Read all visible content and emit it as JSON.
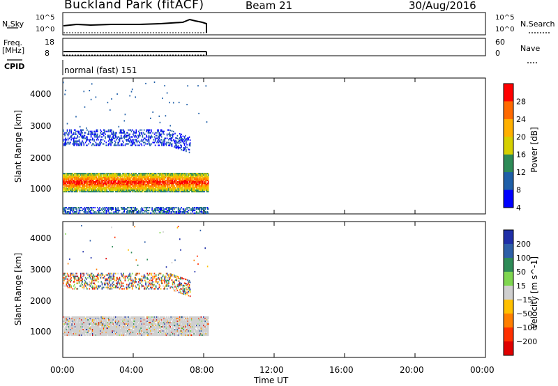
{
  "header": {
    "title": "Buckland Park (fitACF)",
    "beam": "Beam 21",
    "date": "30/Aug/2016"
  },
  "status_panels": {
    "nsky_label": "N.Sky",
    "nsky_ticks": [
      "10^5",
      "10^0"
    ],
    "nsearch_label": "N.Search",
    "freq_label": "Freq.",
    "freq_unit": "[MHz]",
    "freq_ticks": [
      "18",
      "8"
    ],
    "nave_ticks": [
      "60",
      "0"
    ],
    "nave_label": "Nave",
    "cpid_label": "CPID",
    "cpid_value": "normal (fast) 151"
  },
  "chart_data": [
    {
      "type": "heatmap",
      "name": "power",
      "ylabel": "Slant Range [km]",
      "colorbar_label": "Power [dB]",
      "colorbar_ticks": [
        "28",
        "24",
        "20",
        "16",
        "12",
        "8",
        "4"
      ],
      "colorbar_colors": [
        "#ff0000",
        "#ff6a00",
        "#ffb000",
        "#d6d000",
        "#2e8b57",
        "#1f5fa8",
        "#0000ff"
      ],
      "ylim": [
        200,
        4600
      ],
      "yticks": [
        "4000",
        "3000",
        "2000",
        "1000"
      ],
      "x_range_hours": [
        0,
        24
      ],
      "data_extent_hours": [
        0,
        8.25
      ],
      "features": [
        {
          "label": "ionospheric band",
          "range_km": [
            900,
            1500
          ],
          "power_db": 24,
          "time_h": [
            0,
            8.25
          ]
        },
        {
          "label": "upper scatter",
          "range_km": [
            2400,
            2900
          ],
          "power_db": 6,
          "time_h": [
            0,
            7.2
          ]
        },
        {
          "label": "ground scatter",
          "range_km": [
            200,
            400
          ],
          "power_db": 10,
          "time_h": [
            0,
            8.25
          ]
        }
      ]
    },
    {
      "type": "heatmap",
      "name": "velocity",
      "ylabel": "Slant Range [km]",
      "colorbar_label": "Velocity [m s^-1]",
      "colorbar_ticks": [
        "200",
        "100",
        "50",
        "15",
        "−15",
        "−50",
        "−100",
        "−200"
      ],
      "colorbar_colors": [
        "#1f2fa8",
        "#2e5fa8",
        "#2e8b57",
        "#7fd650",
        "#cfcfcf",
        "#ffc000",
        "#ff7f00",
        "#ff3000",
        "#e00000"
      ],
      "ylim": [
        200,
        4600
      ],
      "yticks": [
        "4000",
        "3000",
        "2000",
        "1000"
      ],
      "x_range_hours": [
        0,
        24
      ],
      "data_extent_hours": [
        0,
        8.25
      ],
      "features": [
        {
          "label": "ionospheric band",
          "range_km": [
            900,
            1500
          ],
          "velocity": 0,
          "time_h": [
            0,
            8.25
          ]
        },
        {
          "label": "upper scatter",
          "range_km": [
            2400,
            2900
          ],
          "velocity": -30,
          "time_h": [
            0,
            7.2
          ]
        }
      ]
    }
  ],
  "xaxis": {
    "label": "Time UT",
    "ticks": [
      "00:00",
      "04:00",
      "08:00",
      "12:00",
      "16:00",
      "20:00",
      "00:00"
    ]
  }
}
